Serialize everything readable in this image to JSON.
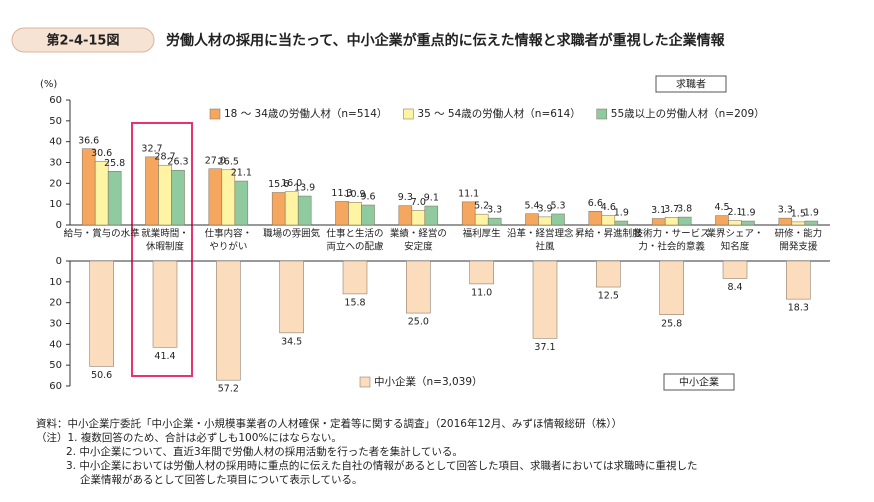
{
  "header": {
    "figure_label": "第2-4-15図",
    "title": "労働人材の採用に当たって、中小企業が重点的に伝えた情報と求職者が重視した企業情報"
  },
  "chart_data": [
    {
      "type": "bar",
      "panel_label": "求職者",
      "y_unit": "(%)",
      "legend": "top-right",
      "categories": [
        [
          "給与・賞与の水準"
        ],
        [
          "就業時間・",
          "休暇制度"
        ],
        [
          "仕事内容・",
          "やりがい"
        ],
        [
          "職場の雰囲気"
        ],
        [
          "仕事と生活の",
          "両立への配慮"
        ],
        [
          "業績・経営の",
          "安定度"
        ],
        [
          "福利厚生"
        ],
        [
          "沿革・経営理念・",
          "社風"
        ],
        [
          "昇給・昇進制度"
        ],
        [
          "技術力・サービス",
          "力・社会的意義"
        ],
        [
          "業界シェア・",
          "知名度"
        ],
        [
          "研修・能力",
          "開発支援"
        ]
      ],
      "series": [
        {
          "name": "18 ～ 34歳の労働人材（n=514）",
          "color": "#f5a75f",
          "values": [
            36.6,
            32.7,
            27.0,
            15.6,
            11.3,
            9.3,
            11.1,
            5.4,
            6.6,
            3.1,
            4.5,
            3.3
          ],
          "value_labels": [
            "36.6",
            "32.7",
            "27.0",
            "15.6",
            "11.3",
            "9.3",
            "11.1",
            "5.4",
            "6.6",
            "3.1",
            "4.5",
            "3.3"
          ]
        },
        {
          "name": "35 ～ 54歳の労働人材（n=614）",
          "color": "#fff4a3",
          "values": [
            30.6,
            28.7,
            26.5,
            16.0,
            10.9,
            7.0,
            5.2,
            3.9,
            4.6,
            3.7,
            2.1,
            1.5
          ],
          "value_labels": [
            "30.6",
            "28.7",
            "26.5",
            "16.0",
            "10.9",
            "7.0",
            "5.2",
            "3.9",
            "4.6",
            "3.7",
            "2.1",
            "1.5"
          ]
        },
        {
          "name": "55歳以上の労働人材（n=209）",
          "color": "#8fcb9f",
          "values": [
            25.8,
            26.3,
            21.1,
            13.9,
            9.6,
            9.1,
            3.3,
            5.3,
            1.9,
            3.8,
            1.9,
            1.9
          ],
          "value_labels": [
            "25.8",
            "26.3",
            "21.1",
            "13.9",
            "9.6",
            "9.1",
            "3.3",
            "5.3",
            "1.9",
            "3.8",
            "1.9",
            "1.9"
          ]
        }
      ],
      "ylim": [
        0,
        60
      ],
      "yticks": [
        0,
        10,
        20,
        30,
        40,
        50,
        60
      ]
    },
    {
      "type": "bar",
      "panel_label": "中小企業",
      "inverted": true,
      "legend": "bottom-center",
      "series": [
        {
          "name": "中小企業（n=3,039）",
          "color": "#fbdcbc",
          "values": [
            50.6,
            41.4,
            57.2,
            34.5,
            15.8,
            25.0,
            11.0,
            37.1,
            12.5,
            25.8,
            8.4,
            18.3
          ],
          "value_labels": [
            "50.6",
            "41.4",
            "57.2",
            "34.5",
            "15.8",
            "25.0",
            "11.0",
            "37.1",
            "12.5",
            "25.8",
            "8.4",
            "18.3"
          ]
        }
      ],
      "ylim": [
        0,
        60
      ],
      "yticks": [
        0,
        10,
        20,
        30,
        40,
        50,
        60
      ]
    }
  ],
  "notes": [
    "資料：中小企業庁委託「中小企業・小規模事業者の人材確保・定着等に関する調査」（2016年12月、みずほ情報総研（株））",
    "（注）1. 複数回答のため、合計は必ずしも100%にはならない。",
    "2. 中小企業について、直近3年間で労働人材の採用活動を行った者を集計している。",
    "3. 中小企業においては労働人材の採用時に重点的に伝えた自社の情報があるとして回答した項目、求職者においては求職時に重視した",
    "企業情報があるとして回答した項目について表示している。"
  ]
}
